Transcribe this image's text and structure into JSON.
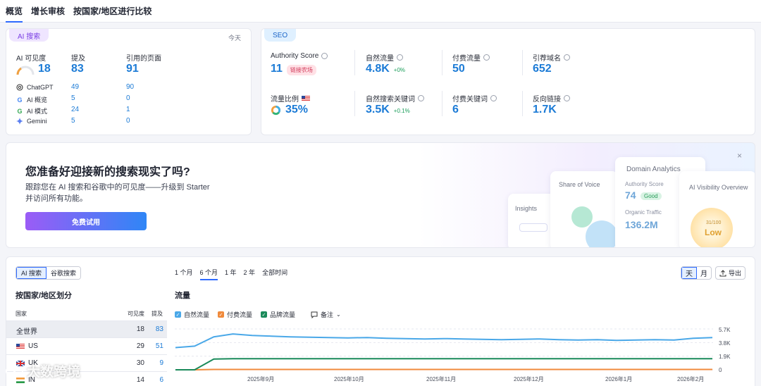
{
  "tabs": [
    "概览",
    "增长审核",
    "按国家/地区进行比较"
  ],
  "ai": {
    "pill": "AI 搜索",
    "today": "今天",
    "visibility_label": "AI 可见度",
    "visibility_value": "18",
    "mentions_label": "提及",
    "mentions_value": "83",
    "cited_label": "引用的页面",
    "cited_value": "91",
    "rows": [
      {
        "name": "ChatGPT",
        "mentions": "49",
        "cited": "90",
        "icon": "chatgpt-icon"
      },
      {
        "name": "AI 概览",
        "mentions": "5",
        "cited": "0",
        "icon": "google-icon"
      },
      {
        "name": "AI 模式",
        "mentions": "24",
        "cited": "1",
        "icon": "google-icon"
      },
      {
        "name": "Gemini",
        "mentions": "5",
        "cited": "0",
        "icon": "gemini-icon"
      }
    ]
  },
  "seo": {
    "pill": "SEO",
    "authority_label": "Authority Score",
    "authority_value": "11",
    "authority_badge": "链接农场",
    "organic_label": "自然流量",
    "organic_value": "4.8K",
    "organic_delta": "+0%",
    "paid_label": "付费流量",
    "paid_value": "50",
    "ref_label": "引荐域名",
    "ref_value": "652",
    "share_label": "流量比例",
    "share_value": "35%",
    "org_kw_label": "自然搜索关键词",
    "org_kw_value": "3.5K",
    "org_kw_delta": "+0.1%",
    "paid_kw_label": "付费关键词",
    "paid_kw_value": "6",
    "backlinks_label": "反向链接",
    "backlinks_value": "1.7K"
  },
  "promo": {
    "title": "您准备好迎接新的搜索现实了吗?",
    "sub1": "跟踪您在 AI 搜索和谷歌中的可见度——升级到 Starter",
    "sub2": "并访问所有功能。",
    "button": "免费试用",
    "close": "×",
    "insights": "Insights",
    "share_of_voice": "Share of Voice",
    "domain_analytics": "Domain Analytics",
    "da_authority": "Authority Score",
    "da_authority_value": "74",
    "da_good": "Good",
    "da_organic": "Organic Traffic",
    "da_organic_value": "136.2M",
    "ai_visibility": "AI Visibility Overview",
    "gauge_value": "31",
    "gauge_max": "/100",
    "gauge_label": "Low"
  },
  "bottom": {
    "seg_ai": "AI 搜索",
    "seg_google": "谷歌搜索",
    "periods": [
      "1 个月",
      "6 个月",
      "1 年",
      "2 年",
      "全部时间"
    ],
    "day": "天",
    "month": "月",
    "export": "导出",
    "country_title": "按国家/地区划分",
    "col_country": "国家",
    "col_visibility": "可见度",
    "col_mentions": "提及",
    "rows": [
      {
        "name": "全世界",
        "visibility": "18",
        "mentions": "83"
      },
      {
        "name": "US",
        "visibility": "29",
        "mentions": "51"
      },
      {
        "name": "UK",
        "visibility": "30",
        "mentions": "9"
      },
      {
        "name": "IN",
        "visibility": "14",
        "mentions": "6"
      }
    ],
    "traffic_title": "流量",
    "legend_organic": "自然流量",
    "legend_paid": "付费流量",
    "legend_brand": "品牌流量",
    "notes": "备注"
  },
  "chart_data": {
    "type": "line",
    "x_ticks": [
      "2025年9月",
      "2025年10月",
      "2025年11月",
      "2025年12月",
      "2026年1月",
      "2026年2月"
    ],
    "y_ticks": [
      "5.7K",
      "3.8K",
      "1.9K",
      "0"
    ],
    "ylim": [
      0,
      5700
    ],
    "series": [
      {
        "name": "自然流量",
        "color": "#4aa8e8",
        "values": [
          3100,
          3300,
          4600,
          5000,
          4800,
          4700,
          4600,
          4550,
          4500,
          4450,
          4500,
          4400,
          4350,
          4300,
          4350,
          4300,
          4250,
          4200,
          4250,
          4300,
          4200,
          4150,
          4200,
          4100,
          4150,
          4200,
          4150,
          4400,
          4500
        ]
      },
      {
        "name": "付费流量",
        "color": "#f08a3c",
        "values": [
          0,
          0,
          50,
          50,
          50,
          50,
          50,
          50,
          50,
          50,
          50,
          50,
          50,
          50,
          50,
          50,
          50,
          50,
          50,
          50,
          50,
          50,
          50,
          50,
          50,
          50,
          50,
          50,
          50
        ]
      },
      {
        "name": "品牌流量",
        "color": "#1a8a5a",
        "values": [
          0,
          0,
          1500,
          1550,
          1550,
          1550,
          1550,
          1550,
          1550,
          1550,
          1550,
          1550,
          1550,
          1550,
          1550,
          1550,
          1550,
          1550,
          1550,
          1550,
          1550,
          1550,
          1550,
          1550,
          1550,
          1550,
          1550,
          1550,
          1550
        ]
      }
    ]
  },
  "watermark": "大数跨境"
}
